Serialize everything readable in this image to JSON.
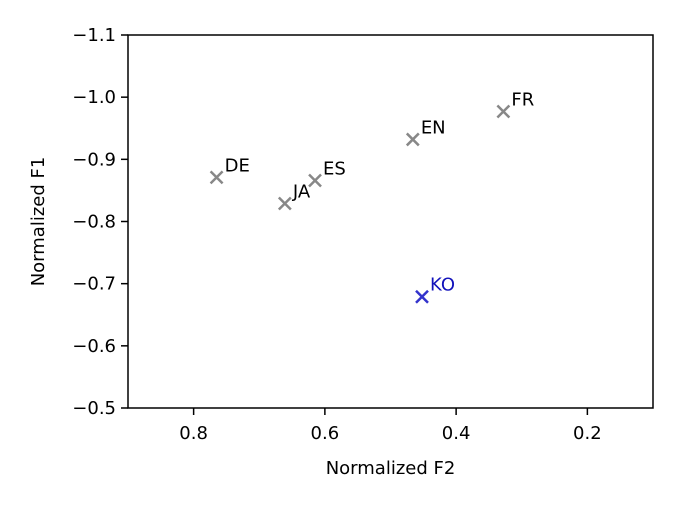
{
  "chart_data": {
    "type": "scatter",
    "xlabel": "Normalized F2",
    "ylabel": "Normalized F1",
    "xlim": [
      0.9,
      0.1
    ],
    "ylim": [
      -0.5,
      -1.1
    ],
    "x_inverted": true,
    "y_inverted": true,
    "xticks": [
      0.8,
      0.6,
      0.4,
      0.2
    ],
    "xtick_labels": [
      "0.8",
      "0.6",
      "0.4",
      "0.2"
    ],
    "yticks": [
      -1.1,
      -1.0,
      -0.9,
      -0.8,
      -0.7,
      -0.6,
      -0.5
    ],
    "ytick_labels": [
      "−1.1",
      "−1.0",
      "−0.9",
      "−0.8",
      "−0.7",
      "−0.6",
      "−0.5"
    ],
    "grid": false,
    "marker": "x",
    "points": [
      {
        "label": "DE",
        "x": 0.765,
        "y": -0.871,
        "color": "#888888"
      },
      {
        "label": "JA",
        "x": 0.661,
        "y": -0.829,
        "color": "#888888"
      },
      {
        "label": "ES",
        "x": 0.615,
        "y": -0.866,
        "color": "#888888"
      },
      {
        "label": "EN",
        "x": 0.466,
        "y": -0.932,
        "color": "#888888"
      },
      {
        "label": "FR",
        "x": 0.328,
        "y": -0.977,
        "color": "#888888"
      },
      {
        "label": "KO",
        "x": 0.452,
        "y": -0.679,
        "color": "#3333cc",
        "label_color": "#1111bb"
      }
    ]
  }
}
